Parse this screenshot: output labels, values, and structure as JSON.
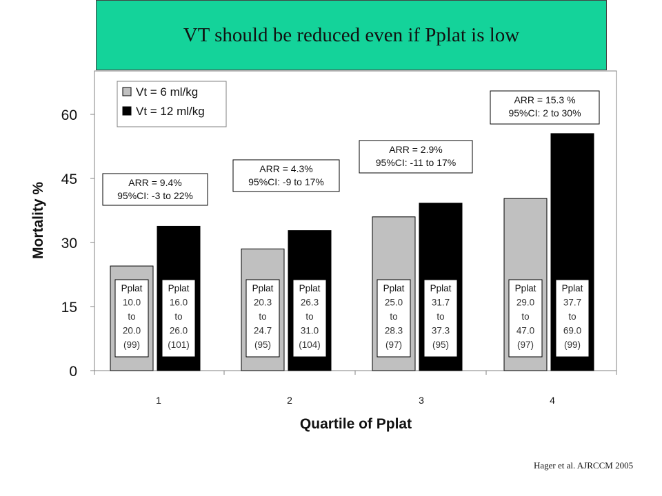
{
  "slide": {
    "title": "VT should be reduced even if Pplat is low",
    "citation": "Hager et al. AJRCCM 2005"
  },
  "chart_data": {
    "type": "bar",
    "xlabel": "Quartile of Pplat",
    "ylabel": "Mortality %",
    "ylim": [
      0,
      68
    ],
    "yticks": [
      0,
      15,
      30,
      45,
      60
    ],
    "categories": [
      "1",
      "2",
      "3",
      "4"
    ],
    "series": [
      {
        "name": "Vt = 6 ml/kg",
        "color": "#c0c0c0",
        "values": [
          24.5,
          28.5,
          36.0,
          40.3
        ]
      },
      {
        "name": "Vt = 12 ml/kg",
        "color": "#000000",
        "values": [
          33.8,
          32.8,
          39.2,
          55.5
        ]
      }
    ],
    "legend_position": "top-left",
    "grid": false,
    "annotations": [
      {
        "category": "1",
        "lines": [
          "ARR = 9.4%",
          "95%CI: -3 to 22%"
        ]
      },
      {
        "category": "2",
        "lines": [
          "ARR = 4.3%",
          "95%CI: -9 to 17%"
        ]
      },
      {
        "category": "3",
        "lines": [
          "ARR = 2.9%",
          "95%CI: -11 to 17%"
        ]
      },
      {
        "category": "4",
        "lines": [
          "ARR = 15.3 %",
          "95%CI: 2 to 30%"
        ]
      }
    ],
    "bar_labels": [
      [
        [
          "Pplat",
          "10.0",
          "to",
          "20.0",
          "(99)"
        ],
        [
          "Pplat",
          "16.0",
          "to",
          "26.0",
          "(101)"
        ]
      ],
      [
        [
          "Pplat",
          "20.3",
          "to",
          "24.7",
          "(95)"
        ],
        [
          "Pplat",
          "26.3",
          "to",
          "31.0",
          "(104)"
        ]
      ],
      [
        [
          "Pplat",
          "25.0",
          "to",
          "28.3",
          "(97)"
        ],
        [
          "Pplat",
          "31.7",
          "to",
          "37.3",
          "(95)"
        ]
      ],
      [
        [
          "Pplat",
          "29.0",
          "to",
          "47.0",
          "(97)"
        ],
        [
          "Pplat",
          "37.7",
          "to",
          "69.0",
          "(99)"
        ]
      ]
    ]
  }
}
